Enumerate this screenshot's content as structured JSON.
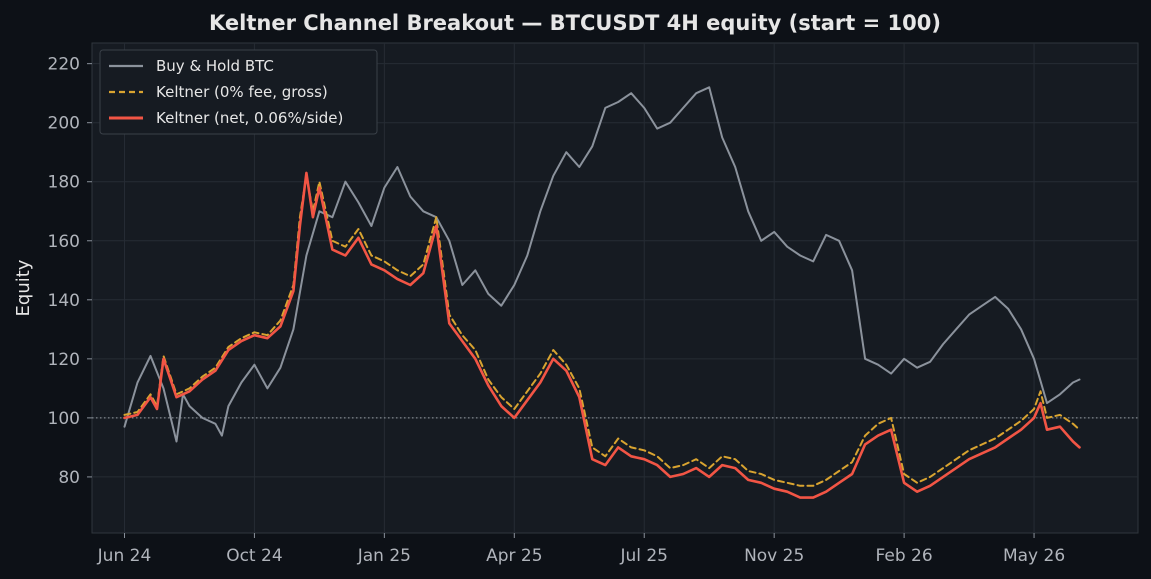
{
  "chart_data": {
    "type": "line",
    "title": "Keltner Channel Breakout — BTCUSDT 4H equity (start = 100)",
    "xlabel": "",
    "ylabel": "Equity",
    "x_ticks": [
      "Jun 24",
      "Oct 24",
      "Jan 25",
      "Apr 25",
      "Jul 25",
      "Nov 25",
      "Feb 26",
      "May 26"
    ],
    "y_ticks": [
      "80",
      "100",
      "120",
      "140",
      "160",
      "180",
      "200",
      "220"
    ],
    "ylim": [
      61,
      227
    ],
    "xlim": [
      -0.25,
      7.8
    ],
    "reference_line": 100,
    "grid": true,
    "legend_position": "top-left",
    "series": [
      {
        "name": "Buy & Hold BTC",
        "color": "#8b929c",
        "style": "solid",
        "x": [
          0,
          0.1,
          0.2,
          0.3,
          0.4,
          0.45,
          0.5,
          0.6,
          0.7,
          0.75,
          0.8,
          0.9,
          1.0,
          1.1,
          1.2,
          1.3,
          1.4,
          1.5,
          1.6,
          1.7,
          1.8,
          1.9,
          2.0,
          2.1,
          2.2,
          2.3,
          2.4,
          2.5,
          2.6,
          2.7,
          2.8,
          2.9,
          3.0,
          3.1,
          3.2,
          3.3,
          3.4,
          3.5,
          3.6,
          3.7,
          3.8,
          3.9,
          4.0,
          4.1,
          4.2,
          4.3,
          4.4,
          4.5,
          4.6,
          4.7,
          4.8,
          4.9,
          5.0,
          5.1,
          5.2,
          5.3,
          5.4,
          5.5,
          5.6,
          5.7,
          5.8,
          5.9,
          6.0,
          6.1,
          6.2,
          6.3,
          6.4,
          6.5,
          6.6,
          6.7,
          6.8,
          6.9,
          7.0,
          7.1,
          7.2,
          7.3,
          7.35
        ],
        "values": [
          97,
          112,
          121,
          110,
          92,
          108,
          104,
          100,
          98,
          94,
          104,
          112,
          118,
          110,
          117,
          130,
          155,
          170,
          168,
          180,
          173,
          165,
          178,
          185,
          175,
          170,
          168,
          160,
          145,
          150,
          142,
          138,
          145,
          155,
          170,
          182,
          190,
          185,
          192,
          205,
          207,
          210,
          205,
          198,
          200,
          205,
          210,
          212,
          195,
          185,
          170,
          160,
          163,
          158,
          155,
          153,
          162,
          160,
          150,
          120,
          118,
          115,
          120,
          117,
          119,
          125,
          130,
          135,
          138,
          141,
          137,
          130,
          120,
          105,
          108,
          112,
          113
        ]
      },
      {
        "name": "Keltner (0% fee, gross)",
        "color": "#d9a430",
        "style": "dashed",
        "x": [
          0,
          0.1,
          0.2,
          0.25,
          0.3,
          0.4,
          0.5,
          0.6,
          0.7,
          0.8,
          0.9,
          1.0,
          1.1,
          1.2,
          1.3,
          1.35,
          1.4,
          1.45,
          1.5,
          1.6,
          1.7,
          1.8,
          1.9,
          2.0,
          2.1,
          2.2,
          2.3,
          2.4,
          2.5,
          2.6,
          2.7,
          2.8,
          2.9,
          3.0,
          3.1,
          3.2,
          3.3,
          3.4,
          3.5,
          3.6,
          3.7,
          3.8,
          3.9,
          4.0,
          4.1,
          4.2,
          4.3,
          4.4,
          4.5,
          4.6,
          4.7,
          4.8,
          4.9,
          5.0,
          5.1,
          5.2,
          5.3,
          5.4,
          5.5,
          5.6,
          5.7,
          5.8,
          5.9,
          6.0,
          6.1,
          6.2,
          6.3,
          6.4,
          6.5,
          6.6,
          6.7,
          6.8,
          6.9,
          7.0,
          7.05,
          7.1,
          7.2,
          7.3,
          7.35
        ],
        "values": [
          101,
          102,
          108,
          104,
          121,
          108,
          110,
          114,
          117,
          124,
          127,
          129,
          128,
          133,
          145,
          168,
          182,
          170,
          180,
          160,
          158,
          164,
          155,
          153,
          150,
          148,
          152,
          168,
          135,
          128,
          123,
          113,
          107,
          103,
          109,
          115,
          123,
          118,
          110,
          90,
          87,
          93,
          90,
          89,
          87,
          83,
          84,
          86,
          83,
          87,
          86,
          82,
          81,
          79,
          78,
          77,
          77,
          79,
          82,
          85,
          94,
          98,
          100,
          81,
          78,
          80,
          83,
          86,
          89,
          91,
          93,
          96,
          99,
          103,
          109,
          100,
          101,
          98,
          96
        ]
      },
      {
        "name": "Keltner (net, 0.06%/side)",
        "color": "#f25545",
        "style": "solid",
        "x": [
          0,
          0.1,
          0.2,
          0.25,
          0.3,
          0.4,
          0.5,
          0.6,
          0.7,
          0.8,
          0.9,
          1.0,
          1.1,
          1.2,
          1.3,
          1.35,
          1.4,
          1.45,
          1.5,
          1.6,
          1.7,
          1.8,
          1.9,
          2.0,
          2.1,
          2.2,
          2.3,
          2.4,
          2.5,
          2.6,
          2.7,
          2.8,
          2.9,
          3.0,
          3.1,
          3.2,
          3.3,
          3.4,
          3.5,
          3.6,
          3.7,
          3.8,
          3.9,
          4.0,
          4.1,
          4.2,
          4.3,
          4.4,
          4.5,
          4.6,
          4.7,
          4.8,
          4.9,
          5.0,
          5.1,
          5.2,
          5.3,
          5.4,
          5.5,
          5.6,
          5.7,
          5.8,
          5.9,
          6.0,
          6.1,
          6.2,
          6.3,
          6.4,
          6.5,
          6.6,
          6.7,
          6.8,
          6.9,
          7.0,
          7.05,
          7.1,
          7.2,
          7.3,
          7.35
        ],
        "values": [
          100,
          101,
          107,
          103,
          120,
          107,
          109,
          113,
          116,
          123,
          126,
          128,
          127,
          131,
          143,
          165,
          183,
          168,
          178,
          157,
          155,
          161,
          152,
          150,
          147,
          145,
          149,
          165,
          132,
          126,
          120,
          111,
          104,
          100,
          106,
          112,
          120,
          116,
          107,
          86,
          84,
          90,
          87,
          86,
          84,
          80,
          81,
          83,
          80,
          84,
          83,
          79,
          78,
          76,
          75,
          73,
          73,
          75,
          78,
          81,
          91,
          94,
          96,
          78,
          75,
          77,
          80,
          83,
          86,
          88,
          90,
          93,
          96,
          100,
          105,
          96,
          97,
          92,
          90
        ]
      }
    ]
  }
}
